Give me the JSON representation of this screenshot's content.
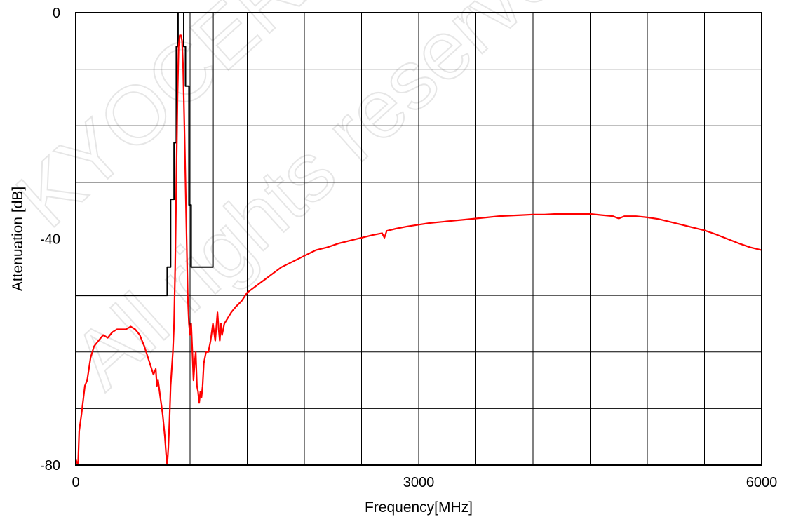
{
  "watermark": {
    "line1": "KYOCERA",
    "line2": "All rights reserved"
  },
  "chart_data": {
    "type": "line",
    "xlabel": "Frequency[MHz]",
    "ylabel": "Attenuation [dB]",
    "xlim": [
      0,
      6000
    ],
    "ylim": [
      -80,
      0
    ],
    "x_grid_step": 500,
    "y_grid_step": 10,
    "x_tick_labels": [
      {
        "value": 0,
        "label": "0"
      },
      {
        "value": 3000,
        "label": "3000"
      },
      {
        "value": 6000,
        "label": "6000"
      }
    ],
    "y_tick_labels": [
      {
        "value": 0,
        "label": "0"
      },
      {
        "value": -40,
        "label": "-40"
      },
      {
        "value": -80,
        "label": "-80"
      }
    ],
    "grid": true,
    "legend": "none",
    "series": [
      {
        "role": "spec_mask",
        "color": "#000000",
        "points": [
          [
            0,
            -50
          ],
          [
            800,
            -50
          ],
          [
            800,
            -45
          ],
          [
            830,
            -45
          ],
          [
            830,
            -33
          ],
          [
            860,
            -33
          ],
          [
            860,
            -23
          ],
          [
            880,
            -23
          ],
          [
            880,
            -6
          ],
          [
            895,
            -6
          ],
          [
            895,
            0
          ],
          [
            945,
            0
          ],
          [
            945,
            -6
          ],
          [
            960,
            -6
          ],
          [
            960,
            -13
          ],
          [
            990,
            -13
          ],
          [
            990,
            -34
          ],
          [
            1010,
            -34
          ],
          [
            1010,
            -45
          ],
          [
            1200,
            -45
          ],
          [
            1200,
            0
          ]
        ]
      },
      {
        "role": "measured_response",
        "color": "#ff0000",
        "points": [
          [
            0,
            -79
          ],
          [
            20,
            -80
          ],
          [
            30,
            -74
          ],
          [
            50,
            -71
          ],
          [
            80,
            -66
          ],
          [
            100,
            -65
          ],
          [
            130,
            -61
          ],
          [
            160,
            -59
          ],
          [
            200,
            -58
          ],
          [
            240,
            -57
          ],
          [
            280,
            -57.5
          ],
          [
            320,
            -56.5
          ],
          [
            360,
            -56
          ],
          [
            400,
            -56
          ],
          [
            440,
            -56
          ],
          [
            480,
            -55.5
          ],
          [
            520,
            -56
          ],
          [
            560,
            -57
          ],
          [
            600,
            -59
          ],
          [
            640,
            -61.5
          ],
          [
            680,
            -64
          ],
          [
            700,
            -63
          ],
          [
            710,
            -66
          ],
          [
            720,
            -65
          ],
          [
            740,
            -68
          ],
          [
            760,
            -71
          ],
          [
            780,
            -75
          ],
          [
            790,
            -78
          ],
          [
            800,
            -80
          ],
          [
            810,
            -77
          ],
          [
            820,
            -72
          ],
          [
            830,
            -66
          ],
          [
            840,
            -63
          ],
          [
            850,
            -60
          ],
          [
            860,
            -55
          ],
          [
            870,
            -45
          ],
          [
            880,
            -30
          ],
          [
            890,
            -15
          ],
          [
            900,
            -6
          ],
          [
            910,
            -4
          ],
          [
            920,
            -4
          ],
          [
            930,
            -5
          ],
          [
            940,
            -10
          ],
          [
            950,
            -20
          ],
          [
            960,
            -30
          ],
          [
            970,
            -40
          ],
          [
            980,
            -50
          ],
          [
            990,
            -55
          ],
          [
            1000,
            -57
          ],
          [
            1010,
            -55
          ],
          [
            1020,
            -60
          ],
          [
            1030,
            -65
          ],
          [
            1040,
            -62
          ],
          [
            1050,
            -60
          ],
          [
            1060,
            -66
          ],
          [
            1070,
            -67
          ],
          [
            1080,
            -69
          ],
          [
            1090,
            -67
          ],
          [
            1100,
            -68
          ],
          [
            1110,
            -66
          ],
          [
            1120,
            -62
          ],
          [
            1140,
            -60
          ],
          [
            1160,
            -60
          ],
          [
            1180,
            -58
          ],
          [
            1200,
            -55
          ],
          [
            1220,
            -58
          ],
          [
            1240,
            -53
          ],
          [
            1250,
            -56
          ],
          [
            1260,
            -58
          ],
          [
            1270,
            -55
          ],
          [
            1280,
            -57
          ],
          [
            1300,
            -55
          ],
          [
            1330,
            -54
          ],
          [
            1360,
            -53
          ],
          [
            1400,
            -52
          ],
          [
            1450,
            -51
          ],
          [
            1500,
            -49.5
          ],
          [
            1600,
            -48
          ],
          [
            1700,
            -46.5
          ],
          [
            1800,
            -45
          ],
          [
            1900,
            -44
          ],
          [
            2000,
            -43
          ],
          [
            2100,
            -42
          ],
          [
            2200,
            -41.5
          ],
          [
            2300,
            -40.8
          ],
          [
            2400,
            -40.3
          ],
          [
            2500,
            -39.8
          ],
          [
            2600,
            -39.3
          ],
          [
            2680,
            -39
          ],
          [
            2700,
            -39.8
          ],
          [
            2720,
            -38.6
          ],
          [
            2800,
            -38.2
          ],
          [
            2900,
            -37.8
          ],
          [
            3000,
            -37.5
          ],
          [
            3100,
            -37.2
          ],
          [
            3200,
            -37
          ],
          [
            3300,
            -36.8
          ],
          [
            3400,
            -36.6
          ],
          [
            3500,
            -36.4
          ],
          [
            3600,
            -36.2
          ],
          [
            3700,
            -36
          ],
          [
            3800,
            -35.9
          ],
          [
            3900,
            -35.8
          ],
          [
            4000,
            -35.7
          ],
          [
            4100,
            -35.7
          ],
          [
            4200,
            -35.6
          ],
          [
            4300,
            -35.6
          ],
          [
            4400,
            -35.6
          ],
          [
            4500,
            -35.6
          ],
          [
            4600,
            -35.8
          ],
          [
            4700,
            -36
          ],
          [
            4750,
            -36.4
          ],
          [
            4800,
            -36
          ],
          [
            4900,
            -36
          ],
          [
            5000,
            -36.2
          ],
          [
            5100,
            -36.5
          ],
          [
            5200,
            -37
          ],
          [
            5300,
            -37.5
          ],
          [
            5400,
            -38
          ],
          [
            5500,
            -38.5
          ],
          [
            5600,
            -39.2
          ],
          [
            5700,
            -40
          ],
          [
            5800,
            -40.8
          ],
          [
            5900,
            -41.5
          ],
          [
            6000,
            -42
          ]
        ]
      }
    ]
  }
}
